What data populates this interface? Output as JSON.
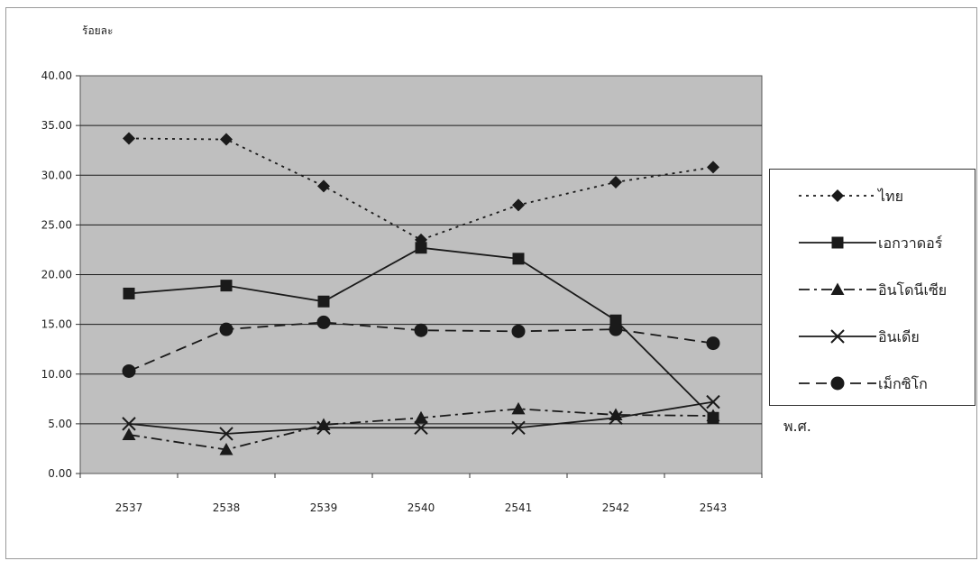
{
  "chart_data": {
    "type": "line",
    "ylabel": "ร้อยละ",
    "xlabel": "พ.ศ.",
    "categories": [
      "2537",
      "2538",
      "2539",
      "2540",
      "2541",
      "2542",
      "2543"
    ],
    "ylim": [
      0,
      40
    ],
    "yticks": [
      "0.00",
      "5.00",
      "10.00",
      "15.00",
      "20.00",
      "25.00",
      "30.00",
      "35.00",
      "40.00"
    ],
    "grid": true,
    "legend_position": "right",
    "series": [
      {
        "name": "ไทย",
        "marker": "diamond",
        "line": "dotted",
        "values": [
          33.7,
          33.6,
          28.9,
          23.5,
          27.0,
          29.3,
          30.8
        ]
      },
      {
        "name": "เอกวาดอร์",
        "marker": "square",
        "line": "solid",
        "values": [
          18.1,
          18.9,
          17.3,
          22.7,
          21.6,
          15.4,
          5.6
        ]
      },
      {
        "name": "อินโดนีเซีย",
        "marker": "triangle",
        "line": "dashdot",
        "values": [
          3.9,
          2.4,
          4.9,
          5.6,
          6.5,
          5.9,
          5.8
        ]
      },
      {
        "name": "อินเดีย",
        "marker": "x",
        "line": "solid",
        "values": [
          5.0,
          4.0,
          4.6,
          4.6,
          4.6,
          5.6,
          7.2
        ]
      },
      {
        "name": "เม็กซิโก",
        "marker": "circle",
        "line": "dashed",
        "values": [
          10.3,
          14.5,
          15.2,
          14.4,
          14.3,
          14.5,
          13.1
        ]
      }
    ],
    "colors": {
      "plot_bg": "#bfbfbf",
      "grid": "#1a1a1a",
      "line": "#1a1a1a"
    }
  }
}
